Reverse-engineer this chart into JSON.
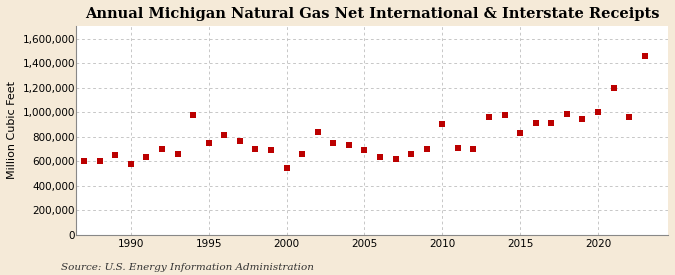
{
  "title": "Annual Michigan Natural Gas Net International & Interstate Receipts",
  "ylabel": "Million Cubic Feet",
  "source": "Source: U.S. Energy Information Administration",
  "years": [
    1987,
    1988,
    1989,
    1990,
    1991,
    1992,
    1993,
    1994,
    1995,
    1996,
    1997,
    1998,
    1999,
    2000,
    2001,
    2002,
    2003,
    2004,
    2005,
    2006,
    2007,
    2008,
    2009,
    2010,
    2011,
    2012,
    2013,
    2014,
    2015,
    2016,
    2017,
    2018,
    2019,
    2020,
    2021,
    2022,
    2023
  ],
  "values": [
    600000,
    600000,
    650000,
    580000,
    630000,
    700000,
    660000,
    980000,
    750000,
    810000,
    760000,
    700000,
    690000,
    540000,
    660000,
    840000,
    750000,
    730000,
    690000,
    630000,
    620000,
    660000,
    700000,
    900000,
    710000,
    700000,
    960000,
    975000,
    830000,
    910000,
    910000,
    985000,
    940000,
    1000000,
    1200000,
    960000,
    1460000
  ],
  "marker_color": "#bb0000",
  "marker_size": 18,
  "bg_color": "#f5ead8",
  "plot_bg_color": "#ffffff",
  "grid_color": "#b0b0b0",
  "ylim": [
    0,
    1700000
  ],
  "yticks": [
    0,
    200000,
    400000,
    600000,
    800000,
    1000000,
    1200000,
    1400000,
    1600000
  ],
  "xlim": [
    1986.5,
    2024.5
  ],
  "xticks": [
    1990,
    1995,
    2000,
    2005,
    2010,
    2015,
    2020
  ],
  "title_fontsize": 10.5,
  "ylabel_fontsize": 8,
  "tick_fontsize": 7.5,
  "source_fontsize": 7.5
}
